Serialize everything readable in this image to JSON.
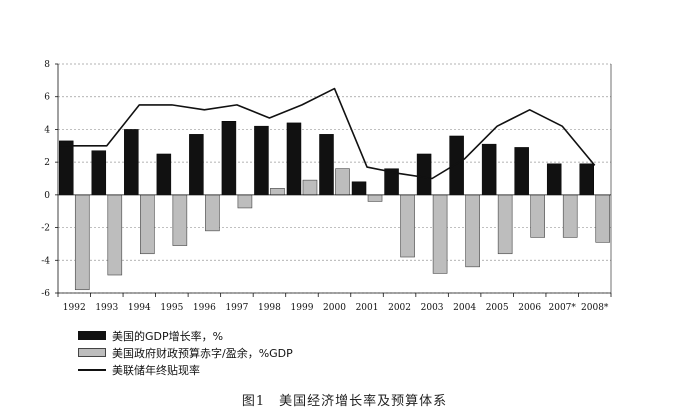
{
  "caption": "图1　美国经济增长率及预算体系",
  "legend": {
    "gdp": "美国的GDP增长率，%",
    "deficit": "美国政府财政预算赤字/盈余，%GDP",
    "rate": "美联储年终贴现率"
  },
  "chart_data": {
    "type": "bar",
    "categories": [
      "1992",
      "1993",
      "1994",
      "1995",
      "1996",
      "1997",
      "1998",
      "1999",
      "2000",
      "2001",
      "2002",
      "2003",
      "2004",
      "2005",
      "2006",
      "2007*",
      "2008*"
    ],
    "ylim": [
      -6,
      8
    ],
    "yticks": [
      "8",
      "6",
      "4",
      "2",
      "0",
      "-2",
      "-4",
      "-6"
    ],
    "series": [
      {
        "name": "美国的GDP增长率，%",
        "kind": "bar",
        "color": "#111111",
        "values": [
          3.3,
          2.7,
          4.0,
          2.5,
          3.7,
          4.5,
          4.2,
          4.4,
          3.7,
          0.8,
          1.6,
          2.5,
          3.6,
          3.1,
          2.9,
          1.9,
          1.9
        ]
      },
      {
        "name": "美国政府财政预算赤字/盈余，%GDP",
        "kind": "bar",
        "color": "#bdbdbd",
        "values": [
          -5.8,
          -4.9,
          -3.6,
          -3.1,
          -2.2,
          -0.8,
          0.4,
          0.9,
          1.6,
          -0.4,
          -3.8,
          -4.8,
          -4.4,
          -3.6,
          -2.6,
          -2.6,
          -2.9
        ]
      },
      {
        "name": "美联储年终贴现率",
        "kind": "line",
        "color": "#111111",
        "values": [
          3.0,
          3.0,
          5.5,
          5.5,
          5.2,
          5.5,
          4.7,
          5.5,
          6.5,
          1.7,
          1.3,
          1.0,
          2.2,
          4.2,
          5.2,
          4.2,
          1.8
        ]
      }
    ],
    "grid": "horizontal"
  }
}
